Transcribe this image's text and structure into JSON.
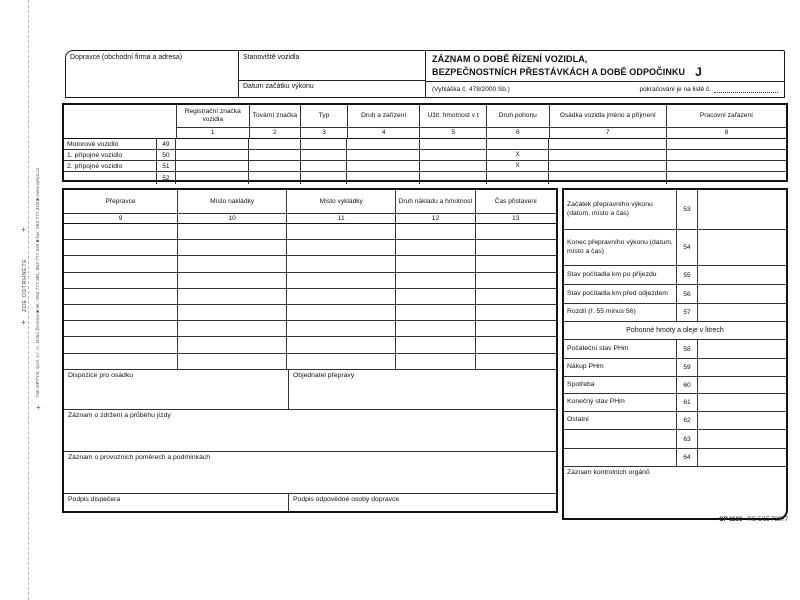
{
  "page": {
    "edge": {
      "tear_text": "ZDE ODTRHNĚTE",
      "print_line": "Tisk OPTYS, spol. s r. o., Dolní Životice ■ tel.: 553 777 381, 553 777 333 ■ fax: 553 777 318 ■ www.optys.cz",
      "plus_mark": "+"
    },
    "footer": {
      "form_code": "OP 1166",
      "print_ref": "RG 5/15  73977"
    }
  },
  "header": {
    "dopravce_label": "Dopravce (obchodní firma a adresa)",
    "stanoviste_label": "Stanoviště vozidla",
    "datum_label": "Datum začátku výkonu",
    "title_line1": "ZÁZNAM O DOBĚ ŘÍZENÍ VOZIDLA,",
    "title_line2": "BEZPEČNOSTNÍCH PŘESTÁVKÁCH A DOBĚ ODPOČINKU",
    "title_suffix": "J",
    "regulation": "(Vyhláška č. 478/2000 Sb.)",
    "continuation_label": "pokračování je na listě č."
  },
  "vehicle_table": {
    "columns": [
      {
        "label": "Registrační značka vozidla",
        "num": "1"
      },
      {
        "label": "Tovární značka",
        "num": "2"
      },
      {
        "label": "Typ",
        "num": "3"
      },
      {
        "label": "Druh a zařízení",
        "num": "4"
      },
      {
        "label": "Užit. hmotnost v t",
        "num": "5"
      },
      {
        "label": "Druh pohonu",
        "num": "6"
      },
      {
        "label": "Osádka vozidla jméno a příjmení",
        "num": "7"
      },
      {
        "label": "Pracovní zařazení",
        "num": "8"
      }
    ],
    "rows": [
      {
        "label": "Motorové vozidlo",
        "num": "49",
        "druh_pohonu": ""
      },
      {
        "label": "1. přípojné vozidlo",
        "num": "50",
        "druh_pohonu": "X"
      },
      {
        "label": "2. přípojné vozidlo",
        "num": "51",
        "druh_pohonu": "X"
      },
      {
        "label": "",
        "num": "52",
        "druh_pohonu": ""
      }
    ]
  },
  "transport_table": {
    "columns": [
      {
        "label": "Přepravce",
        "num": "9"
      },
      {
        "label": "Místo nakládky",
        "num": "10"
      },
      {
        "label": "Místo vykládky",
        "num": "11"
      },
      {
        "label": "Druh nákladu a hmotnost",
        "num": "12"
      },
      {
        "label": "Čas přistavení",
        "num": "13"
      }
    ],
    "blank_row_count": 9,
    "sections": {
      "dispozice": "Dispozice pro osádku",
      "objednatel": "Objednatel přepravy",
      "zdrzeni": "Záznam o zdržení a průběhu jízdy",
      "pomery": "Záznam o provozních poměrech a podmínkách",
      "podpis_dispecera": "Podpis dispečera",
      "podpis_osoby": "Podpis odpovědné osoby dopravce"
    }
  },
  "summary_panel": {
    "rows": [
      {
        "label": "Začátek přepravního výkonu (datum, místo a čas)",
        "num": "53"
      },
      {
        "label": "Konec přepravního výkonu (datum, místo a čas)",
        "num": "54"
      },
      {
        "label": "Stav počítadla km po příjezdu",
        "num": "55"
      },
      {
        "label": "Stav počítadla km před odjezdem",
        "num": "56"
      },
      {
        "label": "Rozdíl (ř. 55 minus 56)",
        "num": "57"
      }
    ],
    "fuel_header": "Pohonné hmoty a oleje v litrech",
    "fuel_rows": [
      {
        "label": "Počáteční stav PHm",
        "num": "58"
      },
      {
        "label": "Nákup PHm",
        "num": "59"
      },
      {
        "label": "Spotřeba",
        "num": "60"
      },
      {
        "label": "Konečný stav PHm",
        "num": "61"
      },
      {
        "label": "Ostatní",
        "num": "62"
      },
      {
        "label": "",
        "num": "63"
      },
      {
        "label": "",
        "num": "64"
      }
    ],
    "control_label": "Záznam kontrolních orgánů"
  }
}
